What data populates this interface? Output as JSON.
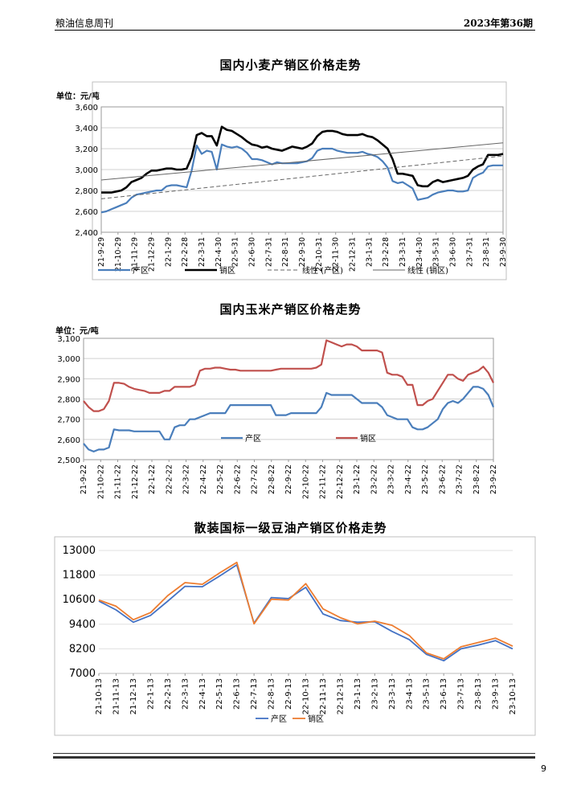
{
  "header": {
    "left": "粮油信息周刊",
    "right": "2023年第36期"
  },
  "page_number": "9",
  "chart_data": [
    {
      "type": "line",
      "title": "国内小麦产销区价格走势",
      "unit_label": "单位：元/吨",
      "ylim": [
        2400,
        3600
      ],
      "y_ticks": [
        "2,400",
        "2,600",
        "2,800",
        "3,000",
        "3,200",
        "3,400",
        "3,600"
      ],
      "x_tick_labels": [
        "21-9-29",
        "21-10-29",
        "21-11-29",
        "21-12-29",
        "22-1-29",
        "22-2-28",
        "22-3-31",
        "22-4-30",
        "22-5-31",
        "22-6-30",
        "22-7-31",
        "22-8-31",
        "22-9-30",
        "22-10-31",
        "22-11-30",
        "22-12-31",
        "23-1-31",
        "23-2-28",
        "23-3-31",
        "23-4-30",
        "23-5-31",
        "23-6-30",
        "23-7-31",
        "23-8-31",
        "23-9-30"
      ],
      "legend_position": "bottom",
      "grid": true,
      "series": [
        {
          "name": "产区",
          "color": "#4a7ebb",
          "style": "solid",
          "values": [
            2590,
            2600,
            2620,
            2640,
            2660,
            2680,
            2730,
            2760,
            2770,
            2780,
            2790,
            2800,
            2800,
            2840,
            2850,
            2850,
            2840,
            2830,
            2990,
            3230,
            3150,
            3180,
            3170,
            3000,
            3240,
            3220,
            3210,
            3220,
            3200,
            3160,
            3100,
            3100,
            3090,
            3070,
            3050,
            3070,
            3060,
            3060,
            3060,
            3060,
            3070,
            3080,
            3110,
            3180,
            3200,
            3200,
            3200,
            3180,
            3170,
            3160,
            3160,
            3160,
            3170,
            3150,
            3140,
            3120,
            3080,
            3020,
            2890,
            2870,
            2880,
            2850,
            2820,
            2710,
            2720,
            2730,
            2760,
            2780,
            2790,
            2800,
            2800,
            2790,
            2790,
            2800,
            2920,
            2950,
            2970,
            3030,
            3040,
            3040,
            3040
          ]
        },
        {
          "name": "销区",
          "color": "#000000",
          "style": "solid",
          "values": [
            2780,
            2780,
            2780,
            2790,
            2800,
            2830,
            2880,
            2900,
            2920,
            2960,
            2990,
            2990,
            3000,
            3010,
            3010,
            3000,
            3000,
            3010,
            3120,
            3330,
            3350,
            3320,
            3320,
            3230,
            3410,
            3380,
            3370,
            3340,
            3310,
            3270,
            3240,
            3230,
            3210,
            3220,
            3200,
            3190,
            3180,
            3200,
            3220,
            3210,
            3200,
            3220,
            3250,
            3320,
            3360,
            3370,
            3370,
            3360,
            3340,
            3330,
            3330,
            3330,
            3340,
            3320,
            3310,
            3280,
            3240,
            3200,
            3100,
            2960,
            2960,
            2950,
            2940,
            2850,
            2840,
            2840,
            2880,
            2900,
            2880,
            2890,
            2900,
            2910,
            2920,
            2940,
            3000,
            3030,
            3050,
            3140,
            3140,
            3140,
            3150
          ]
        },
        {
          "name": "线性 (产区)",
          "color": "#666666",
          "style": "dashed",
          "values": [
            2720,
            3130
          ]
        },
        {
          "name": "线性 (销区)",
          "color": "#666666",
          "style": "solid-thin",
          "values": [
            2900,
            3255
          ]
        }
      ]
    },
    {
      "type": "line",
      "title": "国内玉米产销区价格走势",
      "unit_label": "单位：元/吨",
      "ylim": [
        2500,
        3100
      ],
      "y_ticks": [
        "2,500",
        "2,600",
        "2,700",
        "2,800",
        "2,900",
        "3,000",
        "3,100"
      ],
      "x_tick_labels": [
        "21-9-22",
        "21-10-22",
        "21-11-22",
        "21-12-22",
        "22-1-22",
        "22-2-22",
        "22-3-22",
        "22-4-22",
        "22-5-22",
        "22-6-22",
        "22-7-22",
        "22-8-22",
        "22-9-22",
        "22-10-22",
        "22-11-22",
        "22-12-22",
        "23-1-22",
        "23-2-22",
        "23-3-22",
        "23-4-22",
        "23-5-22",
        "23-6-22",
        "23-7-22",
        "23-8-22",
        "23-9-22"
      ],
      "legend_position": "inside-bottom",
      "grid": true,
      "series": [
        {
          "name": "产区",
          "color": "#4a7ebb",
          "values": [
            2580,
            2550,
            2540,
            2550,
            2550,
            2560,
            2650,
            2645,
            2645,
            2645,
            2640,
            2640,
            2640,
            2640,
            2640,
            2640,
            2600,
            2600,
            2660,
            2670,
            2670,
            2700,
            2700,
            2710,
            2720,
            2730,
            2730,
            2730,
            2730,
            2770,
            2770,
            2770,
            2770,
            2770,
            2770,
            2770,
            2770,
            2770,
            2720,
            2720,
            2720,
            2730,
            2730,
            2730,
            2730,
            2730,
            2730,
            2760,
            2830,
            2820,
            2820,
            2820,
            2820,
            2820,
            2800,
            2780,
            2780,
            2780,
            2780,
            2760,
            2720,
            2710,
            2700,
            2700,
            2700,
            2660,
            2650,
            2650,
            2660,
            2680,
            2700,
            2750,
            2780,
            2790,
            2780,
            2800,
            2830,
            2860,
            2860,
            2850,
            2820,
            2760
          ]
        },
        {
          "name": "销区",
          "color": "#c0504d",
          "values": [
            2790,
            2760,
            2740,
            2740,
            2750,
            2790,
            2880,
            2880,
            2875,
            2860,
            2850,
            2845,
            2840,
            2830,
            2830,
            2830,
            2840,
            2840,
            2860,
            2860,
            2860,
            2860,
            2870,
            2940,
            2950,
            2950,
            2955,
            2955,
            2950,
            2945,
            2945,
            2940,
            2940,
            2940,
            2940,
            2940,
            2940,
            2940,
            2945,
            2950,
            2950,
            2950,
            2950,
            2950,
            2950,
            2950,
            2955,
            2970,
            3090,
            3080,
            3070,
            3060,
            3070,
            3070,
            3060,
            3040,
            3040,
            3040,
            3040,
            3030,
            2930,
            2920,
            2920,
            2910,
            2870,
            2870,
            2770,
            2770,
            2790,
            2800,
            2840,
            2880,
            2920,
            2920,
            2900,
            2890,
            2920,
            2930,
            2940,
            2960,
            2930,
            2880
          ]
        }
      ]
    },
    {
      "type": "line",
      "title": "散装国标一级豆油产销区价格走势",
      "ylim": [
        7000,
        13000
      ],
      "y_ticks": [
        "7000",
        "8200",
        "9400",
        "10600",
        "11800",
        "13000"
      ],
      "x_tick_labels": [
        "21-10-13",
        "21-11-13",
        "21-12-13",
        "22-1-13",
        "22-2-13",
        "22-3-13",
        "22-4-13",
        "22-5-13",
        "22-6-13",
        "22-7-13",
        "22-8-13",
        "22-9-13",
        "22-10-13",
        "22-11-13",
        "22-12-13",
        "23-1-13",
        "23-2-13",
        "23-3-13",
        "23-4-13",
        "23-5-13",
        "23-6-13",
        "23-7-13",
        "23-8-13",
        "23-9-13",
        "23-10-13"
      ],
      "legend_position": "bottom",
      "grid": true,
      "series": [
        {
          "name": "产区",
          "color": "#4472c4",
          "values": [
            10530,
            10100,
            9500,
            9830,
            10530,
            11250,
            11230,
            11750,
            12300,
            9450,
            10700,
            10650,
            11200,
            9900,
            9580,
            9500,
            9520,
            9050,
            8650,
            7930,
            7620,
            8200,
            8380,
            8600,
            8200
          ]
        },
        {
          "name": "销区",
          "color": "#ed7d31",
          "values": [
            10580,
            10280,
            9620,
            9970,
            10800,
            11430,
            11350,
            11900,
            12420,
            9420,
            10620,
            10580,
            11380,
            10150,
            9720,
            9420,
            9550,
            9350,
            8850,
            8000,
            7710,
            8300,
            8510,
            8720,
            8330
          ]
        }
      ]
    }
  ]
}
